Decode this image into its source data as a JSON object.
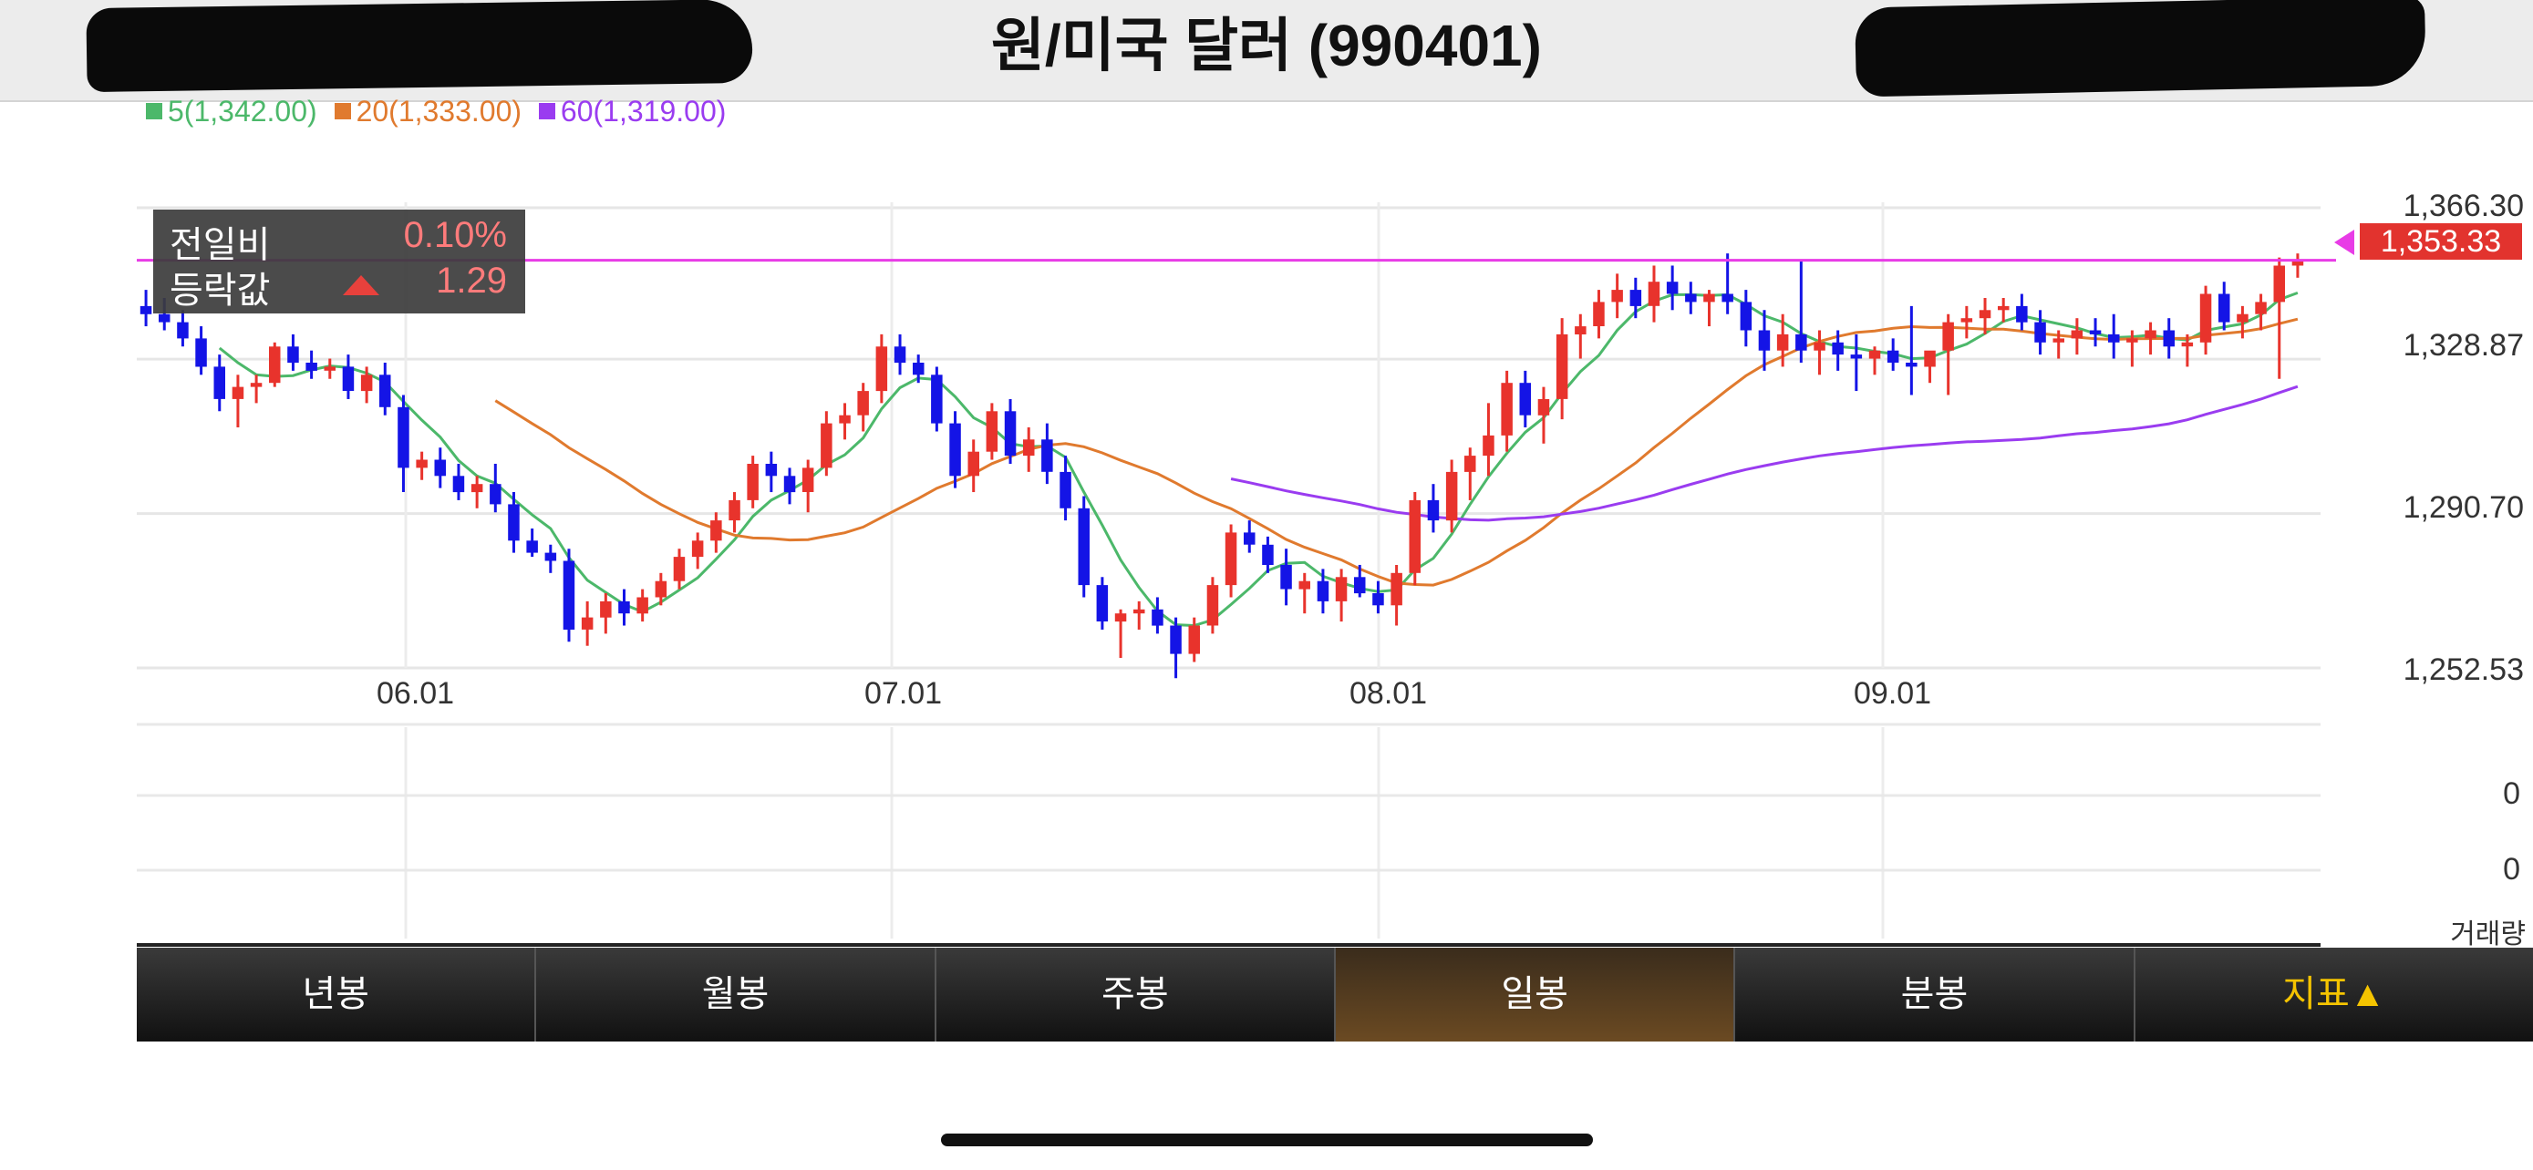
{
  "header": {
    "title": "원/미국 달러 (990401)"
  },
  "legend": [
    {
      "label": "5(1,342.00)",
      "color": "#4cb86a"
    },
    {
      "label": "20(1,333.00)",
      "color": "#e07a2e"
    },
    {
      "label": "60(1,319.00)",
      "color": "#9a3cf0"
    }
  ],
  "info": {
    "change_label": "전일비",
    "change_value": "0.10%",
    "diff_label": "등락값",
    "diff_value": "1.29"
  },
  "price_axis": [
    "1,366.30",
    "1,328.87",
    "1,290.70",
    "1,252.53"
  ],
  "current_price": "1,353.33",
  "date_axis": [
    "06.01",
    "07.01",
    "08.01",
    "09.01"
  ],
  "volume_axis": [
    "0",
    "0"
  ],
  "volume_unit": "거래량",
  "tabs": [
    "년봉",
    "월봉",
    "주봉",
    "일봉",
    "분봉",
    "지표▲"
  ],
  "colors": {
    "up": "#e8332c",
    "down": "#1414e6",
    "current_line": "#e83ce6"
  },
  "chart_data": {
    "type": "candlestick",
    "title": "원/미국 달러 (990401)",
    "ylim": [
      1252.53,
      1366.3
    ],
    "current_price": 1353.33,
    "series": [
      {
        "name": "5",
        "value": 1342.0
      },
      {
        "name": "20",
        "value": 1333.0
      },
      {
        "name": "60",
        "value": 1319.0
      }
    ],
    "ohlc": [
      [
        1342,
        1346,
        1337,
        1340
      ],
      [
        1340,
        1344,
        1336,
        1338
      ],
      [
        1338,
        1341,
        1332,
        1334
      ],
      [
        1334,
        1337,
        1325,
        1327
      ],
      [
        1327,
        1330,
        1316,
        1319
      ],
      [
        1319,
        1325,
        1312,
        1322
      ],
      [
        1322,
        1325,
        1318,
        1323
      ],
      [
        1323,
        1333,
        1322,
        1332
      ],
      [
        1332,
        1335,
        1326,
        1328
      ],
      [
        1328,
        1331,
        1324,
        1326
      ],
      [
        1326,
        1329,
        1324,
        1327
      ],
      [
        1327,
        1330,
        1319,
        1321
      ],
      [
        1321,
        1327,
        1318,
        1325
      ],
      [
        1325,
        1328,
        1315,
        1317
      ],
      [
        1317,
        1320,
        1296,
        1302
      ],
      [
        1302,
        1306,
        1299,
        1304
      ],
      [
        1304,
        1307,
        1297,
        1300
      ],
      [
        1300,
        1303,
        1294,
        1296
      ],
      [
        1296,
        1300,
        1292,
        1298
      ],
      [
        1298,
        1303,
        1291,
        1293
      ],
      [
        1293,
        1296,
        1281,
        1284
      ],
      [
        1284,
        1287,
        1280,
        1281
      ],
      [
        1281,
        1283,
        1276,
        1279
      ],
      [
        1279,
        1282,
        1259,
        1262
      ],
      [
        1262,
        1269,
        1258,
        1265
      ],
      [
        1265,
        1271,
        1261,
        1269
      ],
      [
        1269,
        1272,
        1263,
        1266
      ],
      [
        1266,
        1272,
        1264,
        1270
      ],
      [
        1270,
        1276,
        1268,
        1274
      ],
      [
        1274,
        1282,
        1272,
        1280
      ],
      [
        1280,
        1286,
        1277,
        1284
      ],
      [
        1284,
        1291,
        1281,
        1289
      ],
      [
        1289,
        1296,
        1286,
        1294
      ],
      [
        1294,
        1305,
        1292,
        1303
      ],
      [
        1303,
        1306,
        1296,
        1300
      ],
      [
        1300,
        1302,
        1293,
        1296
      ],
      [
        1296,
        1304,
        1291,
        1302
      ],
      [
        1302,
        1316,
        1300,
        1313
      ],
      [
        1313,
        1318,
        1309,
        1315
      ],
      [
        1315,
        1323,
        1311,
        1321
      ],
      [
        1321,
        1335,
        1318,
        1332
      ],
      [
        1332,
        1335,
        1325,
        1328
      ],
      [
        1328,
        1330,
        1323,
        1325
      ],
      [
        1325,
        1327,
        1311,
        1313
      ],
      [
        1313,
        1316,
        1297,
        1300
      ],
      [
        1300,
        1309,
        1296,
        1306
      ],
      [
        1306,
        1318,
        1304,
        1316
      ],
      [
        1316,
        1319,
        1303,
        1305
      ],
      [
        1305,
        1312,
        1301,
        1309
      ],
      [
        1309,
        1313,
        1298,
        1301
      ],
      [
        1301,
        1305,
        1289,
        1292
      ],
      [
        1292,
        1295,
        1270,
        1273
      ],
      [
        1273,
        1275,
        1262,
        1264
      ],
      [
        1264,
        1267,
        1255,
        1266
      ],
      [
        1266,
        1269,
        1262,
        1267
      ],
      [
        1267,
        1270,
        1261,
        1263
      ],
      [
        1263,
        1265,
        1250,
        1256
      ],
      [
        1256,
        1265,
        1254,
        1263
      ],
      [
        1263,
        1275,
        1261,
        1273
      ],
      [
        1273,
        1288,
        1270,
        1286
      ],
      [
        1286,
        1289,
        1281,
        1283
      ],
      [
        1283,
        1285,
        1276,
        1278
      ],
      [
        1278,
        1282,
        1268,
        1272
      ],
      [
        1272,
        1276,
        1266,
        1274
      ],
      [
        1274,
        1277,
        1266,
        1269
      ],
      [
        1269,
        1277,
        1264,
        1275
      ],
      [
        1275,
        1278,
        1270,
        1271
      ],
      [
        1271,
        1274,
        1266,
        1268
      ],
      [
        1268,
        1278,
        1263,
        1276
      ],
      [
        1276,
        1296,
        1273,
        1294
      ],
      [
        1294,
        1298,
        1286,
        1289
      ],
      [
        1289,
        1304,
        1286,
        1301
      ],
      [
        1301,
        1307,
        1294,
        1305
      ],
      [
        1305,
        1318,
        1300,
        1310
      ],
      [
        1310,
        1326,
        1306,
        1323
      ],
      [
        1323,
        1326,
        1312,
        1315
      ],
      [
        1315,
        1322,
        1308,
        1319
      ],
      [
        1319,
        1339,
        1314,
        1335
      ],
      [
        1335,
        1340,
        1329,
        1337
      ],
      [
        1337,
        1346,
        1334,
        1343
      ],
      [
        1343,
        1350,
        1339,
        1346
      ],
      [
        1346,
        1349,
        1339,
        1342
      ],
      [
        1342,
        1352,
        1338,
        1348
      ],
      [
        1348,
        1352,
        1341,
        1345
      ],
      [
        1345,
        1348,
        1340,
        1343
      ],
      [
        1343,
        1346,
        1337,
        1345
      ],
      [
        1345,
        1355,
        1340,
        1343
      ],
      [
        1343,
        1346,
        1332,
        1336
      ],
      [
        1336,
        1341,
        1326,
        1331
      ],
      [
        1331,
        1340,
        1327,
        1335
      ],
      [
        1335,
        1353,
        1328,
        1331
      ],
      [
        1331,
        1336,
        1325,
        1333
      ],
      [
        1333,
        1336,
        1326,
        1330
      ],
      [
        1330,
        1335,
        1321,
        1329
      ],
      [
        1329,
        1332,
        1325,
        1331
      ],
      [
        1331,
        1334,
        1326,
        1328
      ],
      [
        1328,
        1342,
        1320,
        1327
      ],
      [
        1327,
        1330,
        1323,
        1331
      ],
      [
        1331,
        1340,
        1320,
        1338
      ],
      [
        1338,
        1342,
        1334,
        1339
      ],
      [
        1339,
        1344,
        1335,
        1341
      ],
      [
        1341,
        1344,
        1338,
        1342
      ],
      [
        1342,
        1345,
        1336,
        1338
      ],
      [
        1338,
        1341,
        1330,
        1333
      ],
      [
        1333,
        1336,
        1329,
        1334
      ],
      [
        1334,
        1339,
        1330,
        1336
      ],
      [
        1336,
        1339,
        1332,
        1335
      ],
      [
        1335,
        1340,
        1329,
        1333
      ],
      [
        1333,
        1336,
        1327,
        1334
      ],
      [
        1334,
        1338,
        1330,
        1336
      ],
      [
        1336,
        1339,
        1329,
        1332
      ],
      [
        1332,
        1335,
        1327,
        1333
      ],
      [
        1333,
        1347,
        1330,
        1345
      ],
      [
        1345,
        1348,
        1336,
        1338
      ],
      [
        1338,
        1342,
        1334,
        1340
      ],
      [
        1340,
        1345,
        1336,
        1343
      ],
      [
        1343,
        1354,
        1324,
        1352
      ],
      [
        1352,
        1355,
        1349,
        1353.33
      ]
    ]
  }
}
